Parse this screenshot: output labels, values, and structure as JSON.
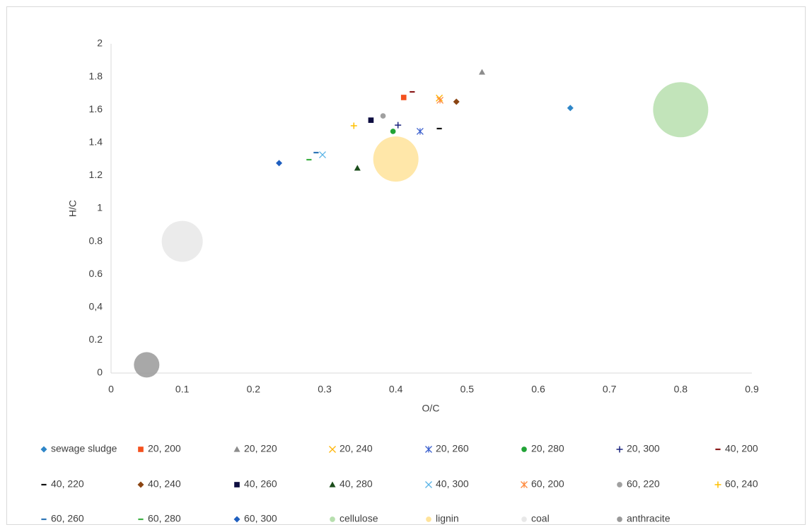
{
  "chart_data": {
    "type": "scatter",
    "xlabel": "O/C",
    "ylabel": "H/C",
    "xlim": [
      0,
      0.9
    ],
    "xticks": [
      0,
      0.1,
      0.2,
      0.3,
      0.4,
      0.5,
      0.6,
      0.7,
      0.8,
      0.9
    ],
    "ylim": [
      0,
      2
    ],
    "yticks": [
      0,
      0.2,
      {
        "value": 0.4,
        "label": "0,4"
      },
      0.6,
      0.8,
      1,
      1.2,
      1.4,
      1.6,
      1.8,
      2
    ],
    "grid": false,
    "legend": "bottom",
    "series": [
      {
        "name": "sewage sludge",
        "color": "#2e86c8",
        "marker": "diamond",
        "x": [
          0.645
        ],
        "values": [
          1.61
        ]
      },
      {
        "name": "20, 200",
        "color": "#f4511e",
        "marker": "square",
        "x": [
          0.411
        ],
        "values": [
          1.674
        ]
      },
      {
        "name": "20, 220",
        "color": "#8c8c8c",
        "marker": "triangle",
        "x": [
          0.521
        ],
        "values": [
          1.828
        ]
      },
      {
        "name": "20, 240",
        "color": "#ffb300",
        "marker": "x",
        "x": [
          0.461
        ],
        "values": [
          1.67
        ]
      },
      {
        "name": "20, 260",
        "color": "#3a5fcd",
        "marker": "asterisk",
        "x": [
          0.434
        ],
        "values": [
          1.468
        ]
      },
      {
        "name": "20, 280",
        "color": "#21a336",
        "marker": "circle",
        "x": [
          0.396
        ],
        "values": [
          1.468
        ]
      },
      {
        "name": "20, 300",
        "color": "#1a237e",
        "marker": "plus",
        "x": [
          0.403
        ],
        "values": [
          1.506
        ]
      },
      {
        "name": "40, 200",
        "color": "#8b1a1a",
        "marker": "dash",
        "x": [
          0.423
        ],
        "values": [
          1.708
        ]
      },
      {
        "name": "40, 220",
        "color": "#111111",
        "marker": "dash",
        "x": [
          0.461
        ],
        "values": [
          1.485
        ]
      },
      {
        "name": "40, 240",
        "color": "#8b4513",
        "marker": "diamond",
        "x": [
          0.485
        ],
        "values": [
          1.648
        ]
      },
      {
        "name": "40, 260",
        "color": "#0d0d40",
        "marker": "square",
        "x": [
          0.365
        ],
        "values": [
          1.536
        ]
      },
      {
        "name": "40, 280",
        "color": "#1b4d1b",
        "marker": "triangle",
        "x": [
          0.346
        ],
        "values": [
          1.245
        ]
      },
      {
        "name": "40, 300",
        "color": "#5ab4e6",
        "marker": "x",
        "x": [
          0.297
        ],
        "values": [
          1.326
        ]
      },
      {
        "name": "60, 200",
        "color": "#ff8a3d",
        "marker": "asterisk",
        "x": [
          0.462
        ],
        "values": [
          1.657
        ]
      },
      {
        "name": "60, 220",
        "color": "#a0a0a0",
        "marker": "circle",
        "x": [
          0.382
        ],
        "values": [
          1.562
        ]
      },
      {
        "name": "60, 240",
        "color": "#ffc000",
        "marker": "plus",
        "x": [
          0.341
        ],
        "values": [
          1.502
        ]
      },
      {
        "name": "60, 260",
        "color": "#2e75b6",
        "marker": "dash",
        "x": [
          0.288
        ],
        "values": [
          1.339
        ]
      },
      {
        "name": "60, 280",
        "color": "#3cb043",
        "marker": "dash",
        "x": [
          0.278
        ],
        "values": [
          1.296
        ]
      },
      {
        "name": "60, 300",
        "color": "#1f5fbf",
        "marker": "diamond",
        "x": [
          0.236
        ],
        "values": [
          1.275
        ]
      },
      {
        "name": "cellulose",
        "color": "#b7dfae",
        "marker": "bubble",
        "x": [
          0.8
        ],
        "values": [
          1.6
        ],
        "sizes": [
          39
        ]
      },
      {
        "name": "lignin",
        "color": "#ffe39a",
        "marker": "bubble",
        "x": [
          0.4
        ],
        "values": [
          1.3
        ],
        "sizes": [
          32
        ]
      },
      {
        "name": "coal",
        "color": "#e8e8e8",
        "marker": "bubble",
        "x": [
          0.1
        ],
        "values": [
          0.8
        ],
        "sizes": [
          29
        ]
      },
      {
        "name": "anthracite",
        "color": "#999999",
        "marker": "bubble",
        "x": [
          0.05
        ],
        "values": [
          0.05
        ],
        "sizes": [
          18
        ]
      }
    ]
  }
}
